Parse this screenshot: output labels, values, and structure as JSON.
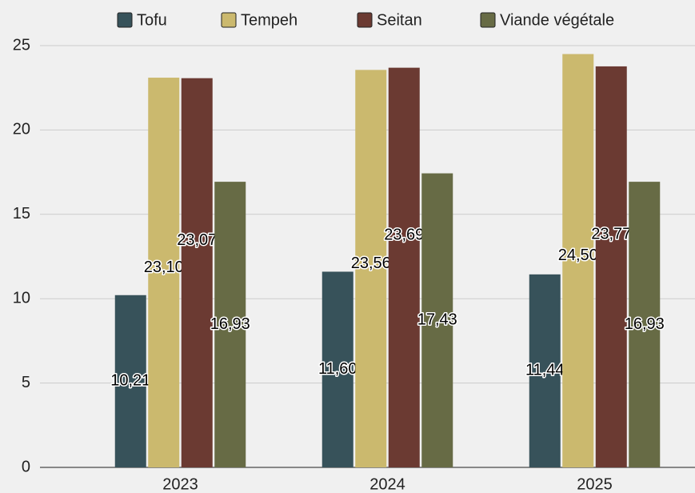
{
  "chart_data": {
    "type": "bar",
    "categories": [
      "2023",
      "2024",
      "2025"
    ],
    "series": [
      {
        "name": "Tofu",
        "color": "#37525a",
        "values": [
          10.21,
          11.6,
          11.44
        ],
        "value_labels": [
          "10,21",
          "11,60",
          "11,44"
        ]
      },
      {
        "name": "Tempeh",
        "color": "#cbb96e",
        "values": [
          23.1,
          23.56,
          24.5
        ],
        "value_labels": [
          "23,10",
          "23,56",
          "24,50"
        ]
      },
      {
        "name": "Seitan",
        "color": "#6b3a32",
        "values": [
          23.07,
          23.69,
          23.77
        ],
        "value_labels": [
          "23,07",
          "23,69",
          "23,77"
        ]
      },
      {
        "name": "Viande végétale",
        "color": "#676b45",
        "values": [
          16.93,
          17.43,
          16.93
        ],
        "value_labels": [
          "16,93",
          "17,43",
          "16,93"
        ]
      }
    ],
    "ylim": [
      0,
      25
    ],
    "yticks": [
      0,
      5,
      10,
      15,
      20,
      25
    ],
    "grid": true,
    "legend": "top"
  }
}
